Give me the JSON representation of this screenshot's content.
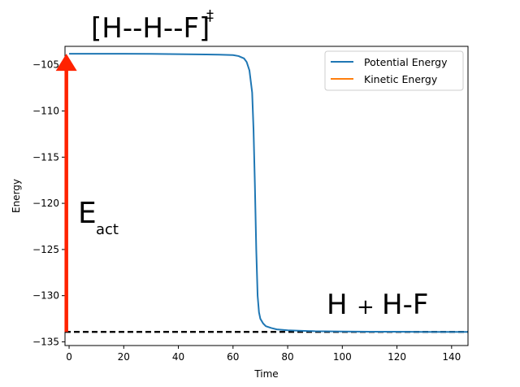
{
  "chart_data": {
    "type": "line",
    "xlabel": "Time",
    "ylabel": "Energy",
    "xlim": [
      -1.5,
      146
    ],
    "ylim": [
      -135.4,
      -103.0
    ],
    "xticks": [
      0,
      20,
      40,
      60,
      80,
      100,
      120,
      140
    ],
    "yticks": [
      -105,
      -110,
      -115,
      -120,
      -125,
      -130,
      -135
    ],
    "xtick_labels": [
      "0",
      "20",
      "40",
      "60",
      "80",
      "100",
      "120",
      "140"
    ],
    "ytick_labels": [
      "−105",
      "−110",
      "−115",
      "−120",
      "−125",
      "−130",
      "−135"
    ],
    "legend_position": "top-right",
    "grid": false,
    "series": [
      {
        "name": "Potential Energy",
        "color": "#1f77b4",
        "x": [
          0,
          10,
          20,
          30,
          40,
          50,
          55,
          60,
          62,
          64,
          65,
          66,
          67,
          67.5,
          68,
          68.5,
          69,
          69.5,
          70,
          71,
          72,
          74,
          76,
          80,
          85,
          90,
          100,
          110,
          120,
          130,
          140,
          146
        ],
        "y": [
          -103.8,
          -103.8,
          -103.8,
          -103.82,
          -103.85,
          -103.88,
          -103.9,
          -103.95,
          -104.05,
          -104.3,
          -104.7,
          -105.6,
          -108.0,
          -112.0,
          -118.0,
          -125.0,
          -130.0,
          -131.8,
          -132.5,
          -133.0,
          -133.3,
          -133.5,
          -133.65,
          -133.75,
          -133.8,
          -133.85,
          -133.88,
          -133.9,
          -133.9,
          -133.92,
          -133.92,
          -133.92
        ]
      },
      {
        "name": "Kinetic Energy",
        "color": "#ff7f0e",
        "x": [],
        "y": []
      }
    ],
    "annotations": {
      "transition_state": "[H--H--F]",
      "transition_state_sup": "‡",
      "activation_main": "E",
      "activation_sub": "act",
      "products_left": "H",
      "products_plus": "+",
      "products_right": "H-F"
    },
    "reference_line": {
      "y": -133.92,
      "color": "#000000",
      "style": "dashed"
    },
    "arrow": {
      "x": -1.0,
      "y_from": -133.92,
      "y_to": -103.8,
      "color": "#ff2200"
    }
  }
}
